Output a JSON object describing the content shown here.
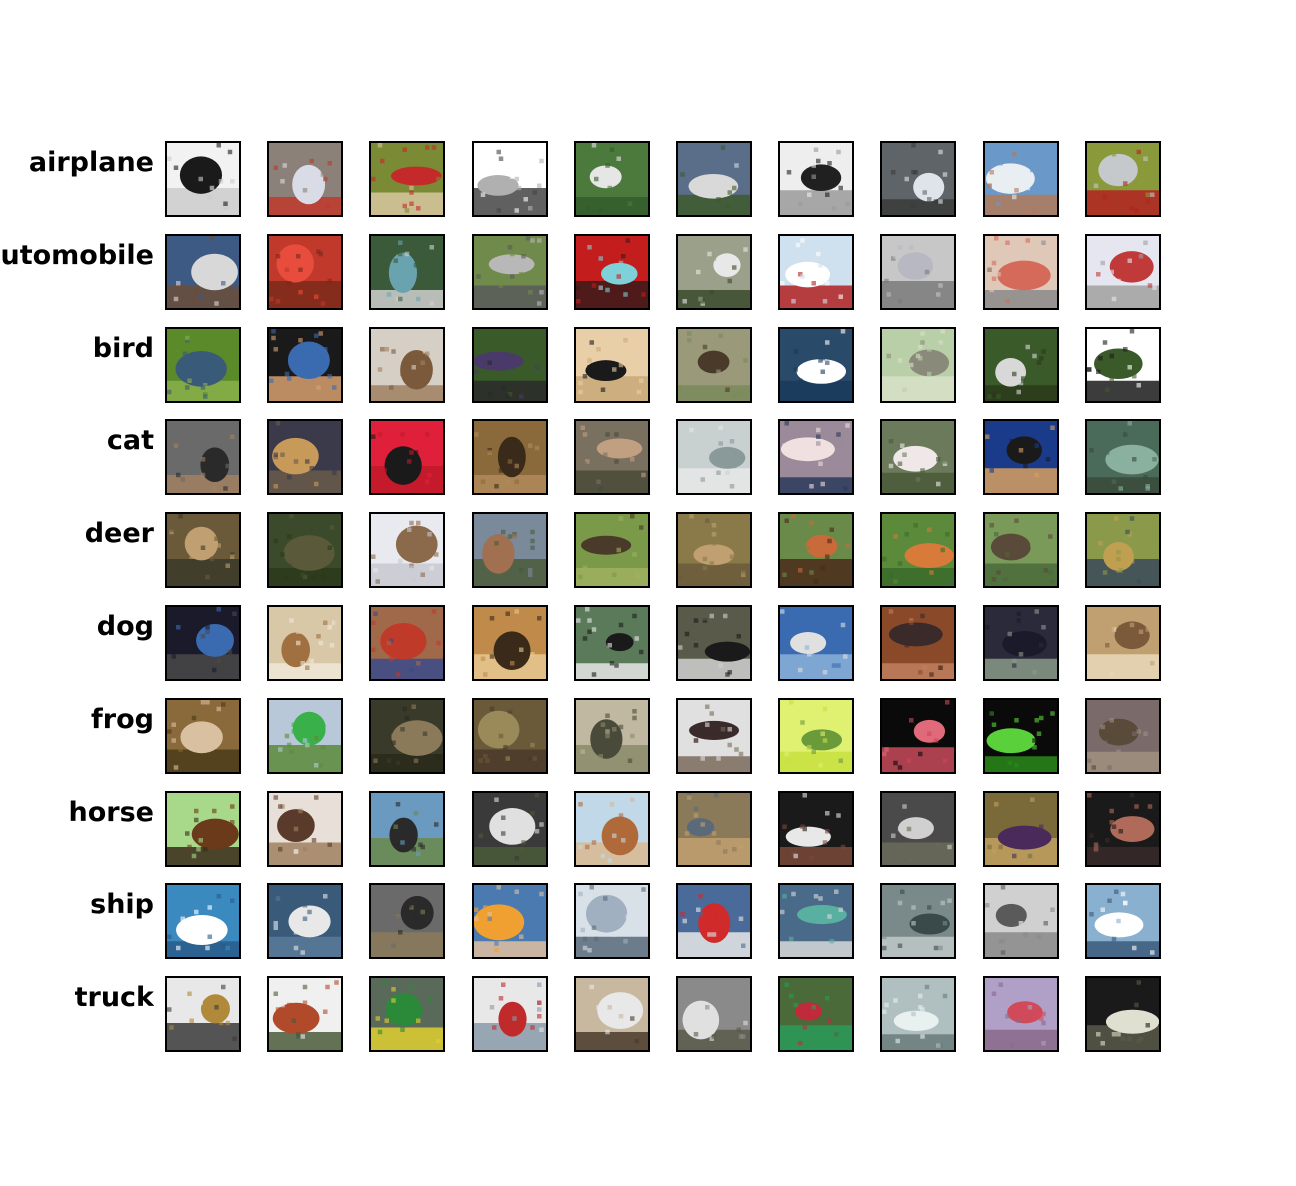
{
  "rows": [
    {
      "label": "airplane",
      "colors": [
        [
          "#f2f2f2",
          "#1a1a1a",
          "#cccccc"
        ],
        [
          "#8c8178",
          "#d9dce6",
          "#c0392b"
        ],
        [
          "#7b8a35",
          "#c42a2a",
          "#d8c7a0"
        ],
        [
          "#ffffff",
          "#b0b0b0",
          "#444444"
        ],
        [
          "#4c7a3d",
          "#e6e6e6",
          "#335c2a"
        ],
        [
          "#5a6e8a",
          "#d9d9d9",
          "#3d5a2a"
        ],
        [
          "#eeeeee",
          "#202020",
          "#9a9a9a"
        ],
        [
          "#5f6468",
          "#dfe4ea",
          "#3a3a3a"
        ],
        [
          "#6a98c9",
          "#e9eef3",
          "#b07a5a"
        ],
        [
          "#8a9a3a",
          "#c5c9cc",
          "#b22222"
        ]
      ]
    },
    {
      "label": "automobile",
      "colors": [
        [
          "#3c5a84",
          "#d8d8d8",
          "#6b4d3a"
        ],
        [
          "#c0392b",
          "#e74c3c",
          "#7a2a1a"
        ],
        [
          "#3a5a3a",
          "#6aa3b0",
          "#cfcfcf"
        ],
        [
          "#6f8a4a",
          "#b8b8b8",
          "#5a5a5a"
        ],
        [
          "#c31d1d",
          "#7fd1d9",
          "#3a1a1a"
        ],
        [
          "#9aa08a",
          "#e8e8e8",
          "#3a4a2a"
        ],
        [
          "#cfe0ee",
          "#ffffff",
          "#b02020"
        ],
        [
          "#c7c7c7",
          "#b8b8c2",
          "#7a7a7a"
        ],
        [
          "#e0c8b8",
          "#d56a5a",
          "#8a8a8a"
        ],
        [
          "#e6e6f0",
          "#c03a3a",
          "#a0a0a0"
        ]
      ]
    },
    {
      "label": "bird",
      "colors": [
        [
          "#5a8a2a",
          "#3a5a7a",
          "#8ab04a"
        ],
        [
          "#1a1a1a",
          "#3a6ab0",
          "#d8a070"
        ],
        [
          "#d6cfc6",
          "#7a5a3a",
          "#a08060"
        ],
        [
          "#3a5a2a",
          "#4a3a6a",
          "#2a2a2a"
        ],
        [
          "#e8cfa8",
          "#1a1a1a",
          "#c8a878"
        ],
        [
          "#9a9a7a",
          "#4a3a2a",
          "#7a8a5a"
        ],
        [
          "#2a4a6a",
          "#ffffff",
          "#1a3a5a"
        ],
        [
          "#b8cfa8",
          "#8a8a7a",
          "#d8e0c8"
        ],
        [
          "#3a5a2a",
          "#d8d8d8",
          "#2a3a1a"
        ],
        [
          "#ffffff",
          "#3a5a2a",
          "#1a1a1a"
        ]
      ]
    },
    {
      "label": "cat",
      "colors": [
        [
          "#6a6a6a",
          "#2a2a2a",
          "#a08060"
        ],
        [
          "#3a3a4a",
          "#c89a5a",
          "#6a5a4a"
        ],
        [
          "#e0203a",
          "#1a1a1a",
          "#c01a2a"
        ],
        [
          "#8a6a3a",
          "#3a2a1a",
          "#b08a5a"
        ],
        [
          "#7a7060",
          "#c0a080",
          "#4a4a3a"
        ],
        [
          "#c8d0d0",
          "#8a9a9a",
          "#e8e8e8"
        ],
        [
          "#9a8a9a",
          "#f0e0e0",
          "#2a3a5a"
        ],
        [
          "#6a7a5a",
          "#f0e8e8",
          "#4a5a3a"
        ],
        [
          "#1a3a8a",
          "#1a1a1a",
          "#d8a060"
        ],
        [
          "#4a6a5a",
          "#8ab0a0",
          "#3a4a3a"
        ]
      ]
    },
    {
      "label": "deer",
      "colors": [
        [
          "#6a5a3a",
          "#c0a070",
          "#3a3a2a"
        ],
        [
          "#3a4a2a",
          "#5a5a3a",
          "#2a3a1a"
        ],
        [
          "#e8eaf0",
          "#8a6a4a",
          "#c8c8d0"
        ],
        [
          "#7a8a9a",
          "#a07050",
          "#4a5a3a"
        ],
        [
          "#7a9a4a",
          "#4a3a2a",
          "#a0b060"
        ],
        [
          "#8a7a4a",
          "#c0a070",
          "#6a5a3a"
        ],
        [
          "#6a8a4a",
          "#c86a3a",
          "#4a2a1a"
        ],
        [
          "#5a8a3a",
          "#d87a3a",
          "#3a6a2a"
        ],
        [
          "#7a9a5a",
          "#5a4a3a",
          "#4a6a3a"
        ],
        [
          "#8a9a4a",
          "#c0a050",
          "#3a4a5a"
        ]
      ]
    },
    {
      "label": "dog",
      "colors": [
        [
          "#1a1a2a",
          "#3a6ab0",
          "#4a4a4a"
        ],
        [
          "#d8c8a8",
          "#a07040",
          "#f0e8d8"
        ],
        [
          "#a06a4a",
          "#c03a2a",
          "#3a4a8a"
        ],
        [
          "#c08a4a",
          "#3a2a1a",
          "#e8c890"
        ],
        [
          "#5a7a5a",
          "#1a1a1a",
          "#e8e8e8"
        ],
        [
          "#5a5a4a",
          "#1a1a1a",
          "#d0d0d0"
        ],
        [
          "#3a6ab0",
          "#e0e0e0",
          "#8ab0d8"
        ],
        [
          "#8a4a2a",
          "#3a2a2a",
          "#c08060"
        ],
        [
          "#2a2a3a",
          "#1a1a2a",
          "#8a9a8a"
        ],
        [
          "#c0a070",
          "#7a5a3a",
          "#e8d8b8"
        ]
      ]
    },
    {
      "label": "frog",
      "colors": [
        [
          "#8a6a3a",
          "#d8c0a0",
          "#4a3a1a"
        ],
        [
          "#b8c8d8",
          "#3ab04a",
          "#5a8a3a"
        ],
        [
          "#3a3a2a",
          "#8a7a5a",
          "#2a2a1a"
        ],
        [
          "#6a5a3a",
          "#9a8a5a",
          "#4a3a2a"
        ],
        [
          "#c0b8a0",
          "#4a4a3a",
          "#8a8a6a"
        ],
        [
          "#e0e0e0",
          "#3a2a2a",
          "#7a6a5a"
        ],
        [
          "#e0f070",
          "#6a9a3a",
          "#c8e040"
        ],
        [
          "#0a0a0a",
          "#e06a7a",
          "#c84a5a"
        ],
        [
          "#0a0a0a",
          "#5ad03a",
          "#2a8a1a"
        ],
        [
          "#7a6a6a",
          "#5a4a3a",
          "#a09080"
        ]
      ]
    },
    {
      "label": "horse",
      "colors": [
        [
          "#a8d88a",
          "#6a3a1a",
          "#3a2a1a"
        ],
        [
          "#e8e0d8",
          "#5a3a2a",
          "#a08060"
        ],
        [
          "#6a9ac0",
          "#2a2a2a",
          "#6a8a4a"
        ],
        [
          "#3a3a3a",
          "#e0e0e0",
          "#4a5a3a"
        ],
        [
          "#c0d8e8",
          "#b06a3a",
          "#d8b890"
        ],
        [
          "#8a7a5a",
          "#5a6a7a",
          "#c0a070"
        ],
        [
          "#1a1a1a",
          "#e8e8e8",
          "#7a4a3a"
        ],
        [
          "#4a4a4a",
          "#d0d0d0",
          "#6a6a5a"
        ],
        [
          "#7a6a3a",
          "#4a2a5a",
          "#c0a060"
        ],
        [
          "#1a1a1a",
          "#b06a5a",
          "#3a2a2a"
        ]
      ]
    },
    {
      "label": "ship",
      "colors": [
        [
          "#3a8ac0",
          "#ffffff",
          "#2a5a8a"
        ],
        [
          "#3a5a7a",
          "#e8e8e8",
          "#5a7a9a"
        ],
        [
          "#6a6a6a",
          "#2a2a2a",
          "#8a7a5a"
        ],
        [
          "#4a7ab0",
          "#f0a030",
          "#e0c0a0"
        ],
        [
          "#d8e0e8",
          "#a0b0c0",
          "#5a6a7a"
        ],
        [
          "#4a6a9a",
          "#d02a2a",
          "#e8e8e8"
        ],
        [
          "#4a6a8a",
          "#5ab0a0",
          "#d8d8d8"
        ],
        [
          "#7a8a8a",
          "#3a4a4a",
          "#c0c8c8"
        ],
        [
          "#d0d0d0",
          "#5a5a5a",
          "#8a8a8a"
        ],
        [
          "#8ab0d0",
          "#ffffff",
          "#3a5a7a"
        ]
      ]
    },
    {
      "label": "truck",
      "colors": [
        [
          "#e8e8e8",
          "#b08a3a",
          "#3a3a3a"
        ],
        [
          "#f0f0f0",
          "#b04a2a",
          "#4a5a3a"
        ],
        [
          "#5a6a5a",
          "#2a8a3a",
          "#e0d030"
        ],
        [
          "#e8e8e8",
          "#c02a2a",
          "#8a9aaa"
        ],
        [
          "#c8b8a0",
          "#e8e8e8",
          "#4a3a2a"
        ],
        [
          "#8a8a8a",
          "#e0e0e0",
          "#5a5a4a"
        ],
        [
          "#4a6a3a",
          "#c02a3a",
          "#2a9a5a"
        ],
        [
          "#b0c0c0",
          "#e8f0f0",
          "#6a7a7a"
        ],
        [
          "#b0a0c8",
          "#d04a5a",
          "#8a6a8a"
        ],
        [
          "#1a1a1a",
          "#e0e0d0",
          "#5a5a4a"
        ]
      ]
    }
  ]
}
